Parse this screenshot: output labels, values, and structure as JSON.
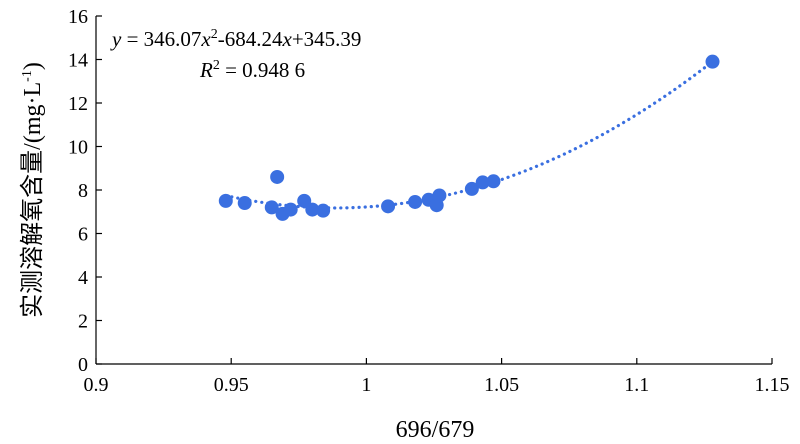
{
  "chart_data": {
    "type": "scatter",
    "xlabel": "696/679",
    "ylabel": "实测溶解氧含量/(mg·L",
    "ylabel_sup": "-1",
    "ylabel_end": ")",
    "xlim": [
      0.9,
      1.15
    ],
    "ylim": [
      0,
      16
    ],
    "xticks": [
      "0.9",
      "0.95",
      "1",
      "1.05",
      "1.1",
      "1.15"
    ],
    "yticks": [
      "0",
      "2",
      "4",
      "6",
      "8",
      "10",
      "12",
      "14",
      "16"
    ],
    "grid": false,
    "point_color": "#3a6fe0",
    "trend_color": "#3a6fe0",
    "points": [
      {
        "x": 0.948,
        "y": 7.5
      },
      {
        "x": 0.955,
        "y": 7.4
      },
      {
        "x": 0.965,
        "y": 7.2
      },
      {
        "x": 0.967,
        "y": 8.6
      },
      {
        "x": 0.969,
        "y": 6.9
      },
      {
        "x": 0.972,
        "y": 7.1
      },
      {
        "x": 0.977,
        "y": 7.5
      },
      {
        "x": 0.98,
        "y": 7.1
      },
      {
        "x": 0.984,
        "y": 7.05
      },
      {
        "x": 1.008,
        "y": 7.25
      },
      {
        "x": 1.018,
        "y": 7.45
      },
      {
        "x": 1.023,
        "y": 7.55
      },
      {
        "x": 1.026,
        "y": 7.3
      },
      {
        "x": 1.027,
        "y": 7.75
      },
      {
        "x": 1.039,
        "y": 8.05
      },
      {
        "x": 1.043,
        "y": 8.35
      },
      {
        "x": 1.047,
        "y": 8.4
      },
      {
        "x": 1.128,
        "y": 13.9
      }
    ],
    "trendline": {
      "type": "polynomial",
      "coefficients": [
        346.07,
        -684.24,
        345.39
      ],
      "x_range": [
        0.948,
        1.128
      ]
    },
    "annotation": {
      "equation_lhs": "y",
      "equation_eq": " = 346.07",
      "equation_x1": "x",
      "equation_sq": "2",
      "equation_mid": "-684.24",
      "equation_x2": "x",
      "equation_end": "+345.39",
      "r2_label": "R",
      "r2_sq": "2",
      "r2_value": " = 0.948 6"
    }
  }
}
